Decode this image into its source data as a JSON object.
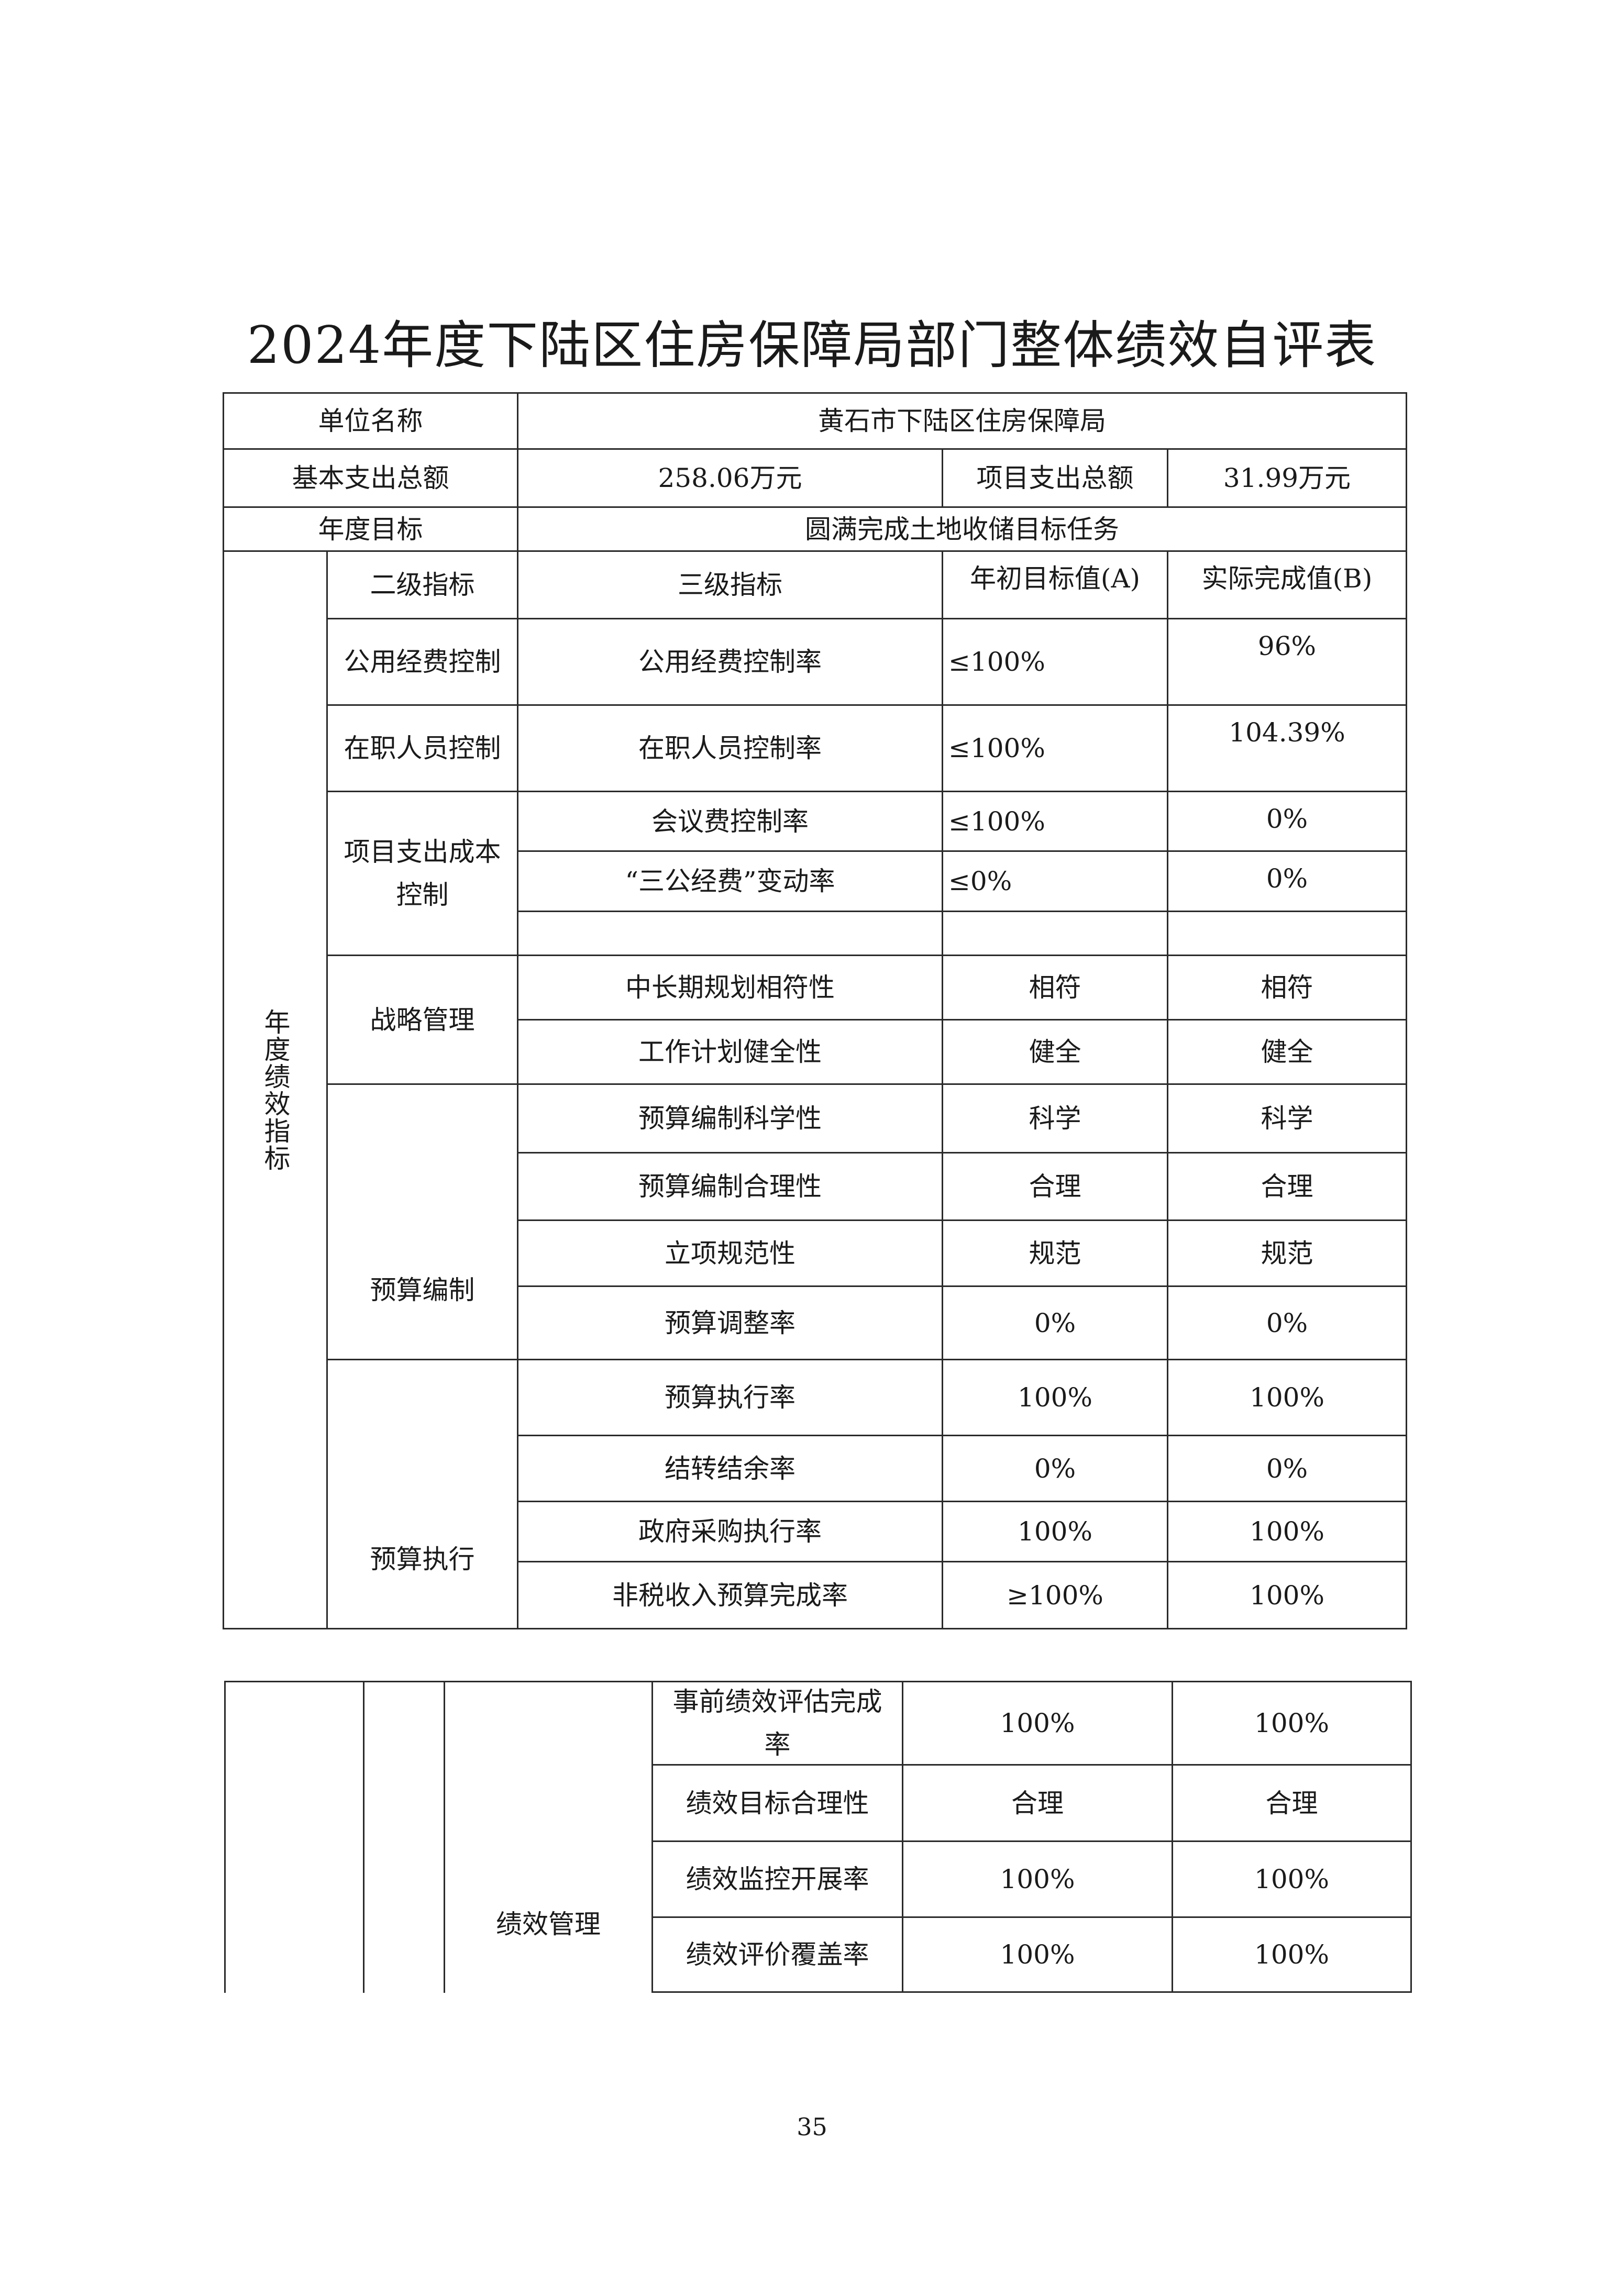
{
  "title": "2024年度下陆区住房保障局部门整体绩效自评表",
  "summary": {
    "unit_name_label": "单位名称",
    "unit_name": "黄石市下陆区住房保障局",
    "basic_expense_label": "基本支出总额",
    "basic_expense": "258.06万元",
    "project_expense_label": "项目支出总额",
    "project_expense": "31.99万元",
    "annual_goal_label": "年度目标",
    "annual_goal": "圆满完成土地收储目标任务"
  },
  "indicators": {
    "section_label": "年度绩效指标",
    "headers": {
      "level2": "二级指标",
      "level3": "三级指标",
      "target": "年初目标值(A)",
      "actual": "实际完成值(B)"
    },
    "groups": [
      {
        "label": "公用经费控制"
      },
      {
        "label": "在职人员控制"
      },
      {
        "label": "项目支出成本控制"
      },
      {
        "label": "战略管理"
      },
      {
        "label": "预算编制"
      },
      {
        "label": "预算执行"
      }
    ],
    "rows": [
      {
        "level3": "公用经费控制率",
        "target": "≤100%",
        "actual": "96%"
      },
      {
        "level3": "在职人员控制率",
        "target": "≤100%",
        "actual": "104.39%"
      },
      {
        "level3": "会议费控制率",
        "target": "≤100%",
        "actual": "0%"
      },
      {
        "level3": "“三公经费”变动率",
        "target": "≤0%",
        "actual": "0%"
      },
      {
        "level3": "",
        "target": "",
        "actual": ""
      },
      {
        "level3": "中长期规划相符性",
        "target": "相符",
        "actual": "相符"
      },
      {
        "level3": "工作计划健全性",
        "target": "健全",
        "actual": "健全"
      },
      {
        "level3": "预算编制科学性",
        "target": "科学",
        "actual": "科学"
      },
      {
        "level3": "预算编制合理性",
        "target": "合理",
        "actual": "合理"
      },
      {
        "level3": "立项规范性",
        "target": "规范",
        "actual": "规范"
      },
      {
        "level3": "预算调整率",
        "target": "0%",
        "actual": "0%"
      },
      {
        "level3": "预算执行率",
        "target": "100%",
        "actual": "100%"
      },
      {
        "level3": "结转结余率",
        "target": "0%",
        "actual": "0%"
      },
      {
        "level3": "政府采购执行率",
        "target": "100%",
        "actual": "100%"
      },
      {
        "level3": "非税收入预算完成率",
        "target": "≥100%",
        "actual": "100%"
      }
    ]
  },
  "continuation": {
    "group_label": "绩效管理",
    "rows": [
      {
        "level3": "事前绩效评估完成率",
        "target": "100%",
        "actual": "100%"
      },
      {
        "level3": "绩效目标合理性",
        "target": "合理",
        "actual": "合理"
      },
      {
        "level3": "绩效监控开展率",
        "target": "100%",
        "actual": "100%"
      },
      {
        "level3": "绩效评价覆盖率",
        "target": "100%",
        "actual": "100%"
      }
    ]
  },
  "page_number": "35"
}
